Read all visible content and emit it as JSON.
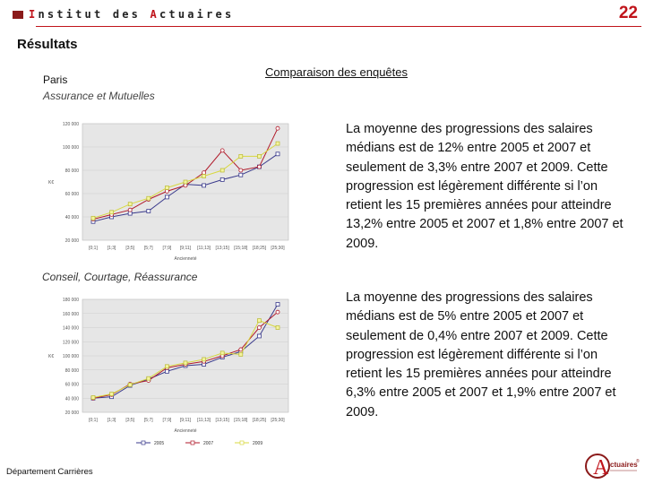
{
  "header": {
    "brand_first": "I",
    "brand_mid": "nstitut des ",
    "brand_second": "A",
    "brand_rest": "ctuaires",
    "page_number": "22"
  },
  "title": "Résultats",
  "section1": {
    "city": "Paris",
    "category": "Assurance et Mutuelles",
    "heading": "Comparaison des enquêtes",
    "paragraph": "La moyenne des progressions des salaires médians est de 12% entre 2005 et 2007 et seulement de 3,3% entre 2007 et 2009. Cette progression est légèrement différente si l’on retient les 15 premières années pour atteindre 13,2% entre 2005 et 2007 et 1,8% entre 2007 et 2009."
  },
  "section2": {
    "category": "Conseil, Courtage, Réassurance",
    "paragraph": "La moyenne des progressions des salaires médians est de 5% entre 2005 et 2007 et seulement de 0,4% entre 2007 et 2009. Cette progression est légèrement différente si l’on retient les 15 premières années pour atteindre 6,3% entre 2005 et 2007 et 1,9% entre 2007 et 2009."
  },
  "footer": "Département Carrières",
  "logo": {
    "initial": "A",
    "text": "ctuaires",
    "registered": "®"
  },
  "colors": {
    "s2005": "#3a3a8c",
    "s2007": "#b01a2a",
    "s2009": "#d8d840",
    "accent": "#c0141b"
  },
  "chart_data": [
    {
      "type": "line",
      "title": "",
      "xlabel": "Ancienneté",
      "ylabel": "K€",
      "categories": [
        "[0;1]",
        "[1;3]",
        "[3;5]",
        "[5;7]",
        "[7;9]",
        "[9;11]",
        "[11;13]",
        "[13;15]",
        "[15;18]",
        "[18;25]",
        "[25;30]"
      ],
      "yticks": [
        "120 000",
        "100 000",
        "80 000",
        "60 000",
        "40 000",
        "20 000"
      ],
      "ylim": [
        20000,
        120000
      ],
      "series": [
        {
          "name": "2005",
          "values": [
            36000,
            40000,
            43000,
            45000,
            57000,
            68000,
            67000,
            72000,
            76000,
            83000,
            94000
          ]
        },
        {
          "name": "2007",
          "values": [
            38000,
            42000,
            46000,
            55000,
            62000,
            67000,
            78000,
            97000,
            80000,
            83000,
            116000
          ]
        },
        {
          "name": "2009",
          "values": [
            39000,
            44000,
            51000,
            56000,
            65000,
            70000,
            75000,
            80000,
            92000,
            92000,
            103000
          ]
        }
      ]
    },
    {
      "type": "line",
      "title": "",
      "xlabel": "Ancienneté",
      "ylabel": "K€",
      "categories": [
        "[0;1]",
        "[1;3]",
        "[3;5]",
        "[5;7]",
        "[7;9]",
        "[9;11]",
        "[11;13]",
        "[13;15]",
        "[15;18]",
        "[18;25]",
        "[25;30]"
      ],
      "yticks": [
        "180 000",
        "160 000",
        "140 000",
        "120 000",
        "100 000",
        "80 000",
        "60 000",
        "40 000",
        "20 000"
      ],
      "ylim": [
        20000,
        180000
      ],
      "legend": [
        "2005",
        "2007",
        "2009"
      ],
      "series": [
        {
          "name": "2005",
          "values": [
            40000,
            42000,
            58000,
            67000,
            78000,
            86000,
            88000,
            98000,
            106000,
            128000,
            173000
          ]
        },
        {
          "name": "2007",
          "values": [
            40000,
            45000,
            60000,
            65000,
            83000,
            88000,
            92000,
            100000,
            109000,
            140000,
            162000
          ]
        },
        {
          "name": "2009",
          "values": [
            41000,
            46000,
            59000,
            68000,
            85000,
            90000,
            95000,
            104000,
            102000,
            150000,
            140000
          ]
        }
      ]
    }
  ]
}
